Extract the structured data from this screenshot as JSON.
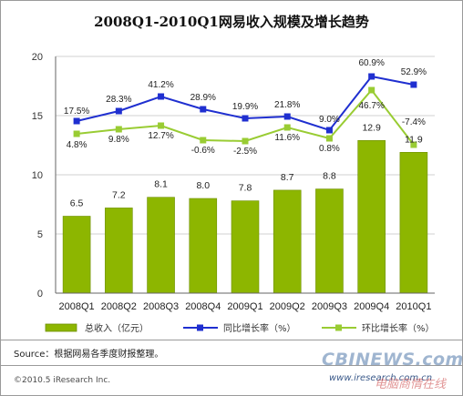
{
  "title": "2008Q1-2010Q1网易收入规模及增长趋势",
  "chart_data": {
    "type": "bar",
    "categories": [
      "2008Q1",
      "2008Q2",
      "2008Q3",
      "2008Q4",
      "2009Q1",
      "2009Q2",
      "2009Q3",
      "2009Q4",
      "2010Q1"
    ],
    "ylim": [
      0,
      20
    ],
    "yticks": [
      0,
      5,
      10,
      15,
      20
    ],
    "grid": true,
    "bar_series": {
      "name": "总收入（亿元）",
      "values": [
        6.5,
        7.2,
        8.1,
        8.0,
        7.8,
        8.7,
        8.8,
        12.9,
        11.9
      ],
      "labels": [
        "6.5",
        "7.2",
        "8.1",
        "8.0",
        "7.8",
        "8.7",
        "8.8",
        "12.9",
        "11.9"
      ],
      "color": "#8DB600"
    },
    "line_series": [
      {
        "name": "同比增长率（%）",
        "color": "#1F2FD0",
        "values": [
          17.5,
          28.3,
          41.2,
          28.9,
          19.9,
          21.8,
          9.0,
          60.9,
          52.9
        ],
        "labels": [
          "17.5%",
          "28.3%",
          "41.2%",
          "28.9%",
          "19.9%",
          "21.8%",
          "9.0%",
          "60.9%",
          "52.9%"
        ]
      },
      {
        "name": "环比增长率（%）",
        "color": "#99CC33",
        "values": [
          4.8,
          9.8,
          12.7,
          -0.6,
          -2.5,
          11.6,
          0.8,
          46.7,
          -7.4
        ],
        "labels": [
          "4.8%",
          "9.8%",
          "12.7%",
          "-0.6%",
          "-2.5%",
          "11.6%",
          "0.8%",
          "46.7%",
          "-7.4%"
        ]
      }
    ]
  },
  "footer": {
    "source": "Source：根据网易各季度财报整理。",
    "copyright": "©2010.5 iResearch Inc.",
    "website": "www.iresearch.com.cn"
  },
  "watermark": {
    "primary": "CBINEWS.com",
    "secondary": "电脑商情在线"
  }
}
